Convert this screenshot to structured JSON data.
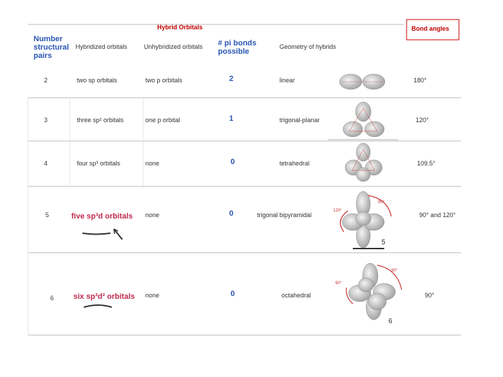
{
  "header": {
    "title": "Hybrid Orbitals",
    "bond_angles": "Bond angles"
  },
  "table": {
    "columns": [
      "Number structural pairs",
      "Hybridized orbitals",
      "Unhybridized orbitals",
      "# pi bonds possible",
      "Geometry of hybrids"
    ],
    "rows": [
      [
        "2",
        "two sp orbitals",
        "two p orbitals",
        "2",
        "linear",
        "180°"
      ],
      [
        "3",
        "three sp² orbitals",
        "one p orbital",
        "1",
        "trigonal-planar",
        "120°"
      ],
      [
        "4",
        "four sp³ orbitals",
        "none",
        "0",
        "tetrahedral",
        "109.5°"
      ],
      [
        "5",
        "five sp³d orbitals",
        "none",
        "0",
        "trigonal bipyramidal",
        "90° and 120°"
      ],
      [
        "6",
        "six sp³d² orbitals",
        "none",
        "0",
        "octahedral",
        "90°"
      ]
    ]
  },
  "diagram_labels": {
    "trigonal_bipyramidal": [
      "90°",
      "120°",
      "5"
    ],
    "octahedral": [
      "90°",
      "90°",
      "6"
    ]
  }
}
